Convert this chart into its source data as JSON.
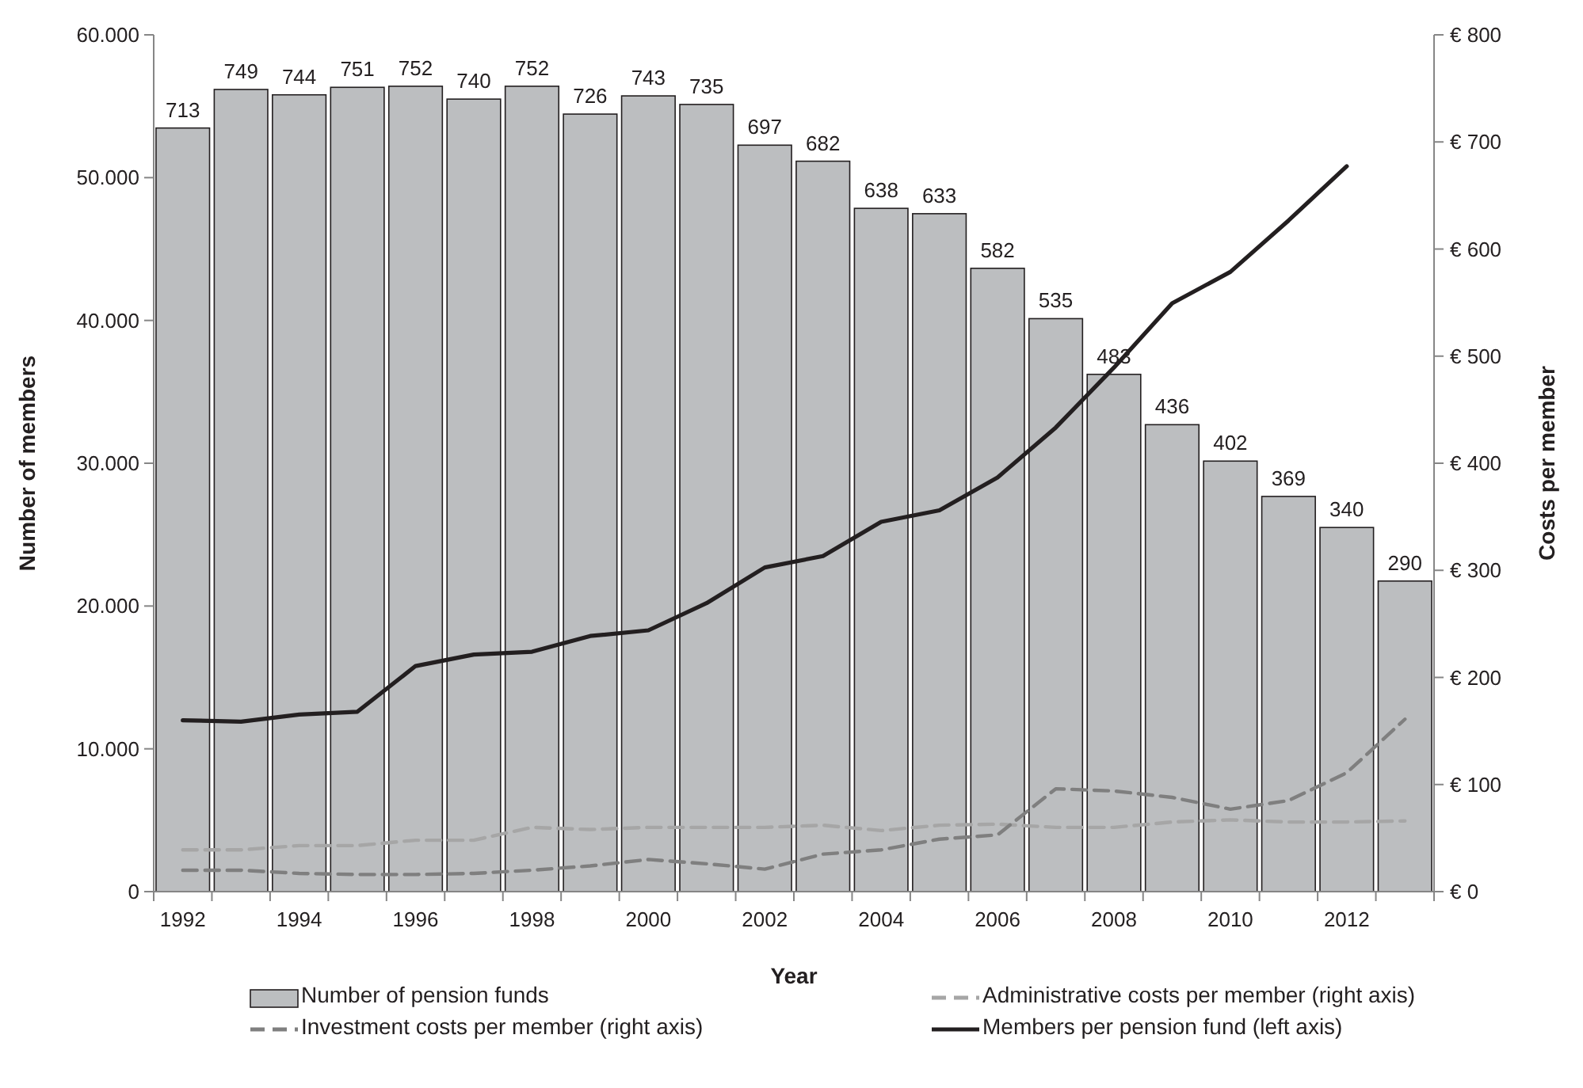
{
  "chart_data": {
    "type": "bar",
    "xlabel": "Year",
    "ylabel": "Number of members",
    "y2label": "Costs per member",
    "categories": [
      "1992",
      null,
      "1994",
      null,
      "1996",
      null,
      "1998",
      null,
      "2000",
      null,
      "2002",
      null,
      "2004",
      null,
      "2006",
      null,
      "2008",
      null,
      "2010",
      null,
      "2012",
      null
    ],
    "ylim": [
      0,
      60000
    ],
    "yticks": [
      {
        "value": 0,
        "label": "0"
      },
      {
        "value": 10000,
        "label": "10.000"
      },
      {
        "value": 20000,
        "label": "20.000"
      },
      {
        "value": 30000,
        "label": "30.000"
      },
      {
        "value": 40000,
        "label": "40.000"
      },
      {
        "value": 50000,
        "label": "50.000"
      },
      {
        "value": 60000,
        "label": "60.000"
      }
    ],
    "y2lim": [
      0,
      800
    ],
    "y2ticks": [
      {
        "value": 0,
        "label": "€ 0"
      },
      {
        "value": 100,
        "label": "€ 100"
      },
      {
        "value": 200,
        "label": "€ 200"
      },
      {
        "value": 300,
        "label": "€ 300"
      },
      {
        "value": 400,
        "label": "€ 400"
      },
      {
        "value": 500,
        "label": "€ 500"
      },
      {
        "value": 600,
        "label": "€ 600"
      },
      {
        "value": 700,
        "label": "€ 700"
      },
      {
        "value": 800,
        "label": "€ 800"
      }
    ],
    "legend": "bottom",
    "grid": false,
    "series": [
      {
        "name": "Number of pension funds",
        "axis": "y2",
        "color": "#bcbec0",
        "values": [
          713,
          749,
          744,
          751,
          752,
          740,
          752,
          726,
          743,
          735,
          697,
          682,
          638,
          633,
          582,
          535,
          483,
          436,
          402,
          369,
          340,
          290
        ],
        "value_labels": [
          "713",
          "749",
          "744",
          "751",
          "752",
          "740",
          "752",
          "726",
          "743",
          "735",
          "697",
          "682",
          "638",
          "633",
          "582",
          "535",
          "483",
          "436",
          "402",
          "369",
          "340",
          "290"
        ]
      },
      {
        "name": "Administrative costs per member (right axis)",
        "type": "line",
        "axis": "y2",
        "color": "#a6a6a6",
        "line_style": "dashed",
        "values": [
          39,
          39,
          43,
          43,
          48,
          48,
          60,
          58,
          60,
          60,
          60,
          62,
          57,
          62,
          63,
          60,
          60,
          65,
          67,
          65,
          65,
          66
        ]
      },
      {
        "name": "Investment costs per member (right axis)",
        "type": "line",
        "axis": "y2",
        "color": "#7f7f7f",
        "line_style": "dashed",
        "values": [
          20,
          20,
          17,
          16,
          16,
          17,
          20,
          24,
          30,
          26,
          21,
          35,
          39,
          49,
          53,
          96,
          94,
          88,
          77,
          85,
          111,
          161
        ]
      },
      {
        "name": "Members per pension fund (left axis)",
        "type": "line",
        "axis": "y",
        "color": "#231f20",
        "line_style": "solid",
        "values": [
          12000,
          11900,
          12400,
          12600,
          15800,
          16600,
          16800,
          17900,
          18300,
          20200,
          22700,
          23500,
          25900,
          26700,
          29000,
          32500,
          36700,
          41200,
          43400,
          47000,
          50800,
          null
        ]
      }
    ]
  }
}
